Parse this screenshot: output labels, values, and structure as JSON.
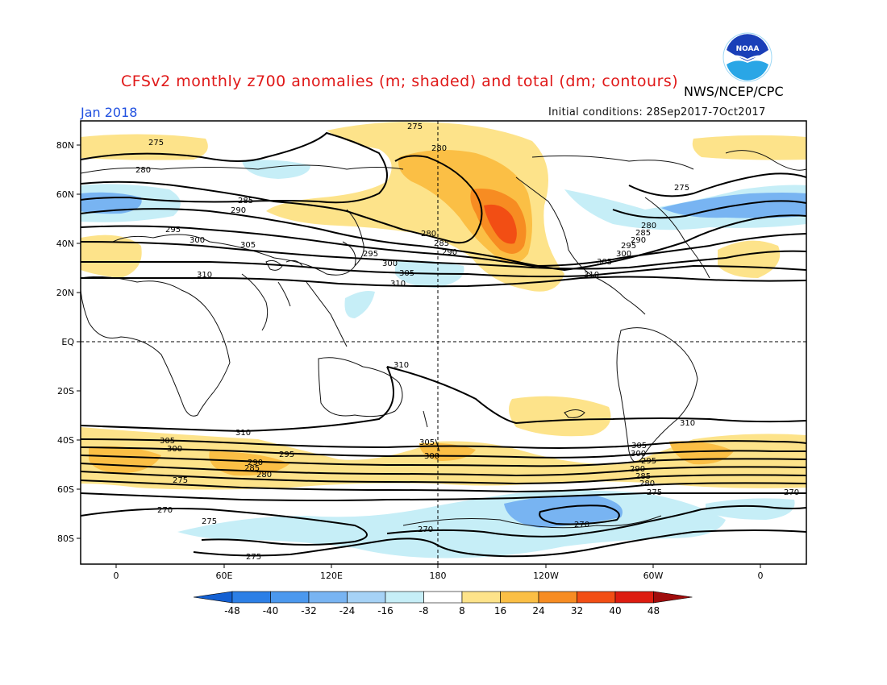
{
  "header": {
    "title": "CFSv2 monthly z700 anomalies (m; shaded) and total (dm; contours)",
    "agency": "NWS/NCEP/CPC",
    "month": "Jan 2018",
    "initial_conditions": "Initial conditions: 28Sep2017-7Oct2017",
    "logo_text": "NOAA"
  },
  "axes": {
    "lat_labels": [
      "80N",
      "60N",
      "40N",
      "20N",
      "EQ",
      "20S",
      "40S",
      "60S",
      "80S"
    ],
    "lon_labels": [
      "0",
      "60E",
      "120E",
      "180",
      "120W",
      "60W",
      "0"
    ]
  },
  "colorbar": {
    "labels": [
      "-48",
      "-40",
      "-32",
      "-24",
      "-16",
      "-8",
      "8",
      "16",
      "24",
      "32",
      "40",
      "48"
    ],
    "colors": [
      "#1460d2",
      "#2c7fe6",
      "#4b98ee",
      "#78b4f2",
      "#a6d2f6",
      "#c6eef7",
      "#ffffff",
      "#fde38a",
      "#fbbf45",
      "#f78c22",
      "#f24e14",
      "#dd1c10",
      "#a00c0c"
    ]
  },
  "contour_labels": [
    "275",
    "280",
    "285",
    "290",
    "295",
    "300",
    "305",
    "310",
    "270"
  ],
  "icons": {
    "logo": "noaa-logo-icon"
  }
}
